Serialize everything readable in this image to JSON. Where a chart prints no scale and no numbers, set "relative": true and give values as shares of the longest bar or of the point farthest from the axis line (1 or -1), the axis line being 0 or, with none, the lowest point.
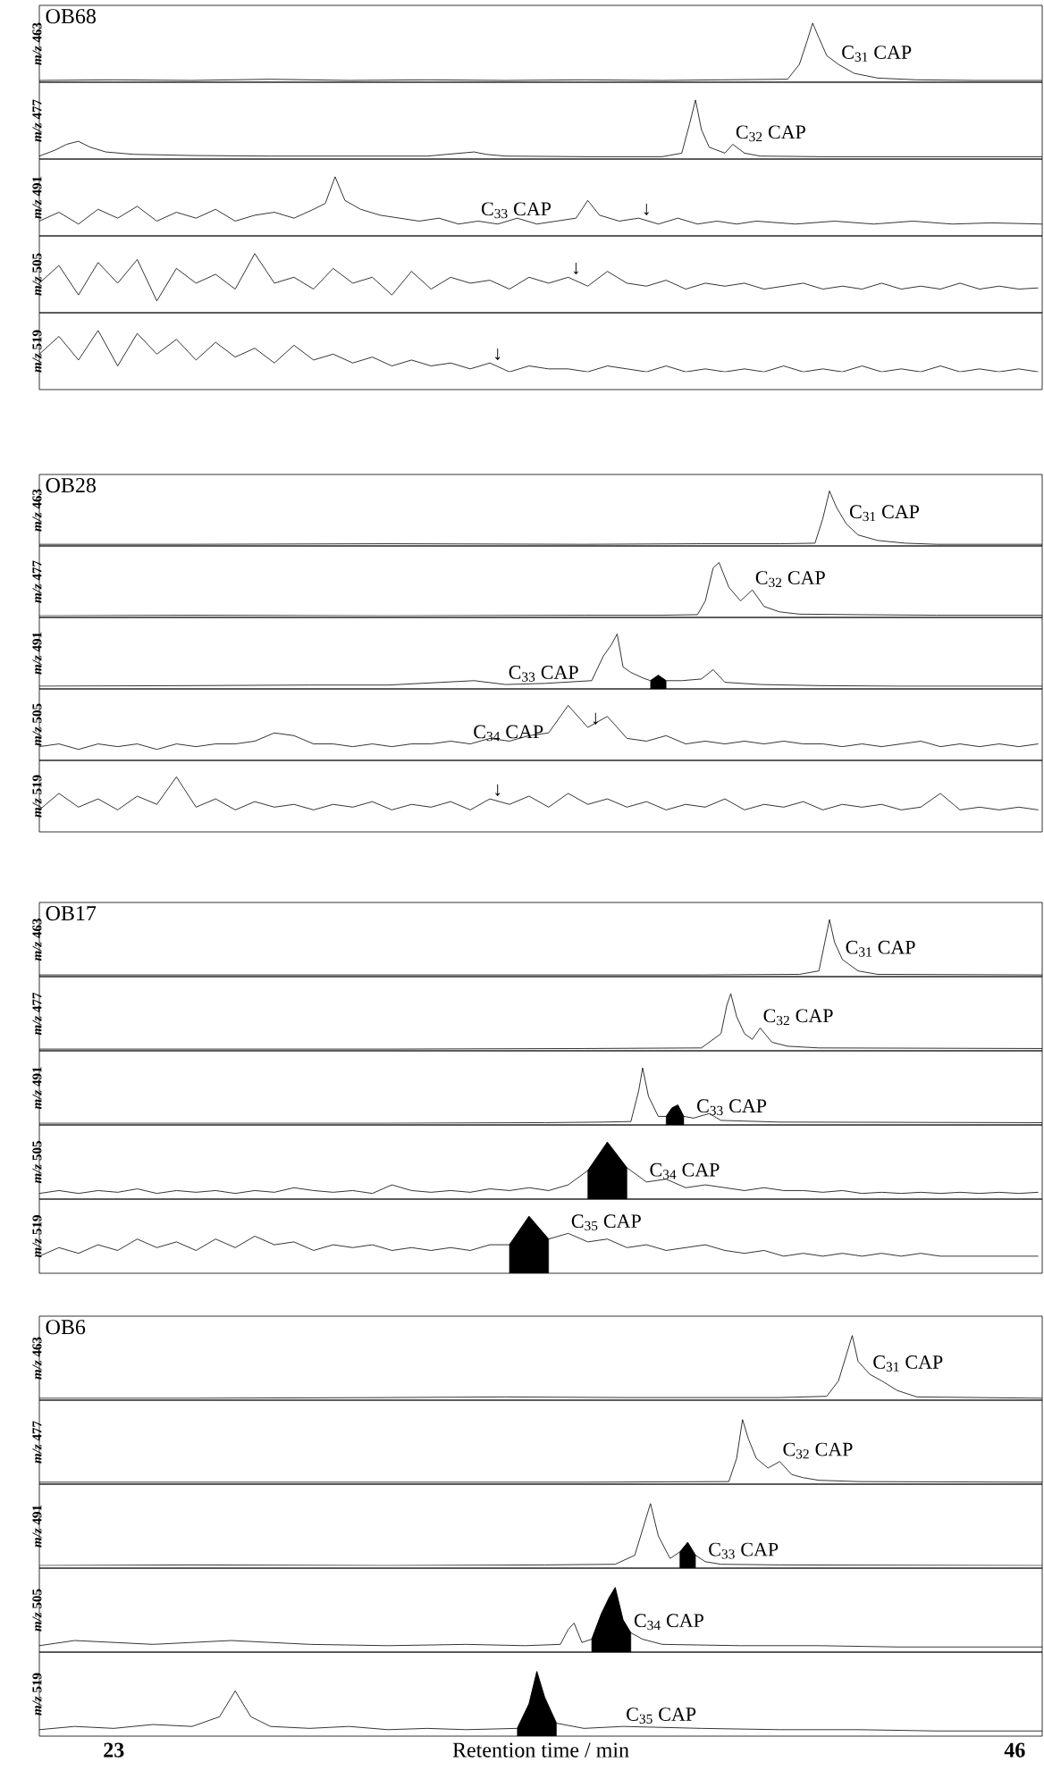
{
  "chart_data": [
    {
      "type": "line",
      "relative": true,
      "title": "OB68",
      "ylabel": "*m/z* 463",
      "xlim": [
        21.1,
        46.7
      ],
      "tick_labels": false,
      "series": [
        {
          "color": "#000000",
          "x": [
            21.1,
            23,
            25,
            27,
            29,
            31,
            33,
            35,
            37,
            38.5,
            40.2,
            40.5,
            40.7,
            40.84,
            41.0,
            41.2,
            41.5,
            41.9,
            42.5,
            43.5,
            45,
            46.7
          ],
          "values": [
            0.03,
            0.04,
            0.03,
            0.05,
            0.03,
            0.04,
            0.03,
            0.04,
            0.03,
            0.04,
            0.05,
            0.3,
            0.7,
            1,
            0.75,
            0.45,
            0.3,
            0.15,
            0.07,
            0.04,
            0.03,
            0.03
          ]
        }
      ],
      "annotations": [
        {
          "text": "C$_{31}$ CAP",
          "x": 41.5,
          "y": 0.3
        }
      ]
    },
    {
      "type": "line",
      "relative": true,
      "ylabel": "*m/z* 477",
      "xlim": [
        21.1,
        46.7
      ],
      "tick_labels": false,
      "series": [
        {
          "color": "#000000",
          "x": [
            21.1,
            21.5,
            21.8,
            22.1,
            22.4,
            22.8,
            23.5,
            25,
            27,
            29,
            31,
            32.2,
            32.5,
            33,
            35,
            37,
            37.5,
            37.7,
            37.85,
            38,
            38.2,
            38.6,
            38.8,
            39.1,
            39.5,
            41,
            43,
            45,
            46.7
          ],
          "values": [
            0.05,
            0.15,
            0.25,
            0.3,
            0.2,
            0.12,
            0.08,
            0.06,
            0.05,
            0.05,
            0.05,
            0.12,
            0.08,
            0.05,
            0.04,
            0.04,
            0.1,
            0.6,
            1,
            0.5,
            0.2,
            0.1,
            0.25,
            0.1,
            0.05,
            0.04,
            0.04,
            0.04,
            0.04
          ]
        }
      ],
      "annotations": [
        {
          "text": "C$_{32}$ CAP",
          "x": 38.8,
          "y": 0.25
        }
      ]
    },
    {
      "type": "line",
      "relative": true,
      "ylabel": "*m/z* 491",
      "xlim": [
        21.1,
        46.7
      ],
      "tick_labels": false,
      "series": [
        {
          "color": "#000000",
          "x": [
            21.1,
            21.6,
            22.1,
            22.6,
            23.1,
            23.6,
            24.1,
            24.6,
            25.1,
            25.6,
            26.1,
            26.6,
            27.1,
            27.6,
            28.1,
            28.4,
            28.65,
            28.9,
            29.3,
            29.8,
            30.3,
            30.8,
            31.3,
            31.8,
            32.3,
            32.8,
            33.3,
            33.8,
            34.3,
            34.8,
            35.1,
            35.4,
            35.9,
            36.4,
            36.9,
            37.4,
            37.9,
            38.4,
            38.9,
            39.4,
            40.4,
            41.4,
            42.4,
            43.4,
            44.4,
            45.4,
            46.7
          ],
          "values": [
            0.25,
            0.4,
            0.2,
            0.45,
            0.3,
            0.5,
            0.25,
            0.4,
            0.3,
            0.45,
            0.25,
            0.35,
            0.4,
            0.3,
            0.45,
            0.55,
            1,
            0.6,
            0.45,
            0.35,
            0.3,
            0.25,
            0.3,
            0.2,
            0.25,
            0.2,
            0.3,
            0.2,
            0.25,
            0.3,
            0.6,
            0.35,
            0.25,
            0.3,
            0.2,
            0.3,
            0.2,
            0.25,
            0.2,
            0.25,
            0.2,
            0.25,
            0.2,
            0.25,
            0.2,
            0.22,
            0.2
          ]
        }
      ],
      "annotations": [
        {
          "text": "C$_{33}$ CAP",
          "x": 32.3,
          "y": 0.25
        },
        {
          "text": "↓",
          "x": 36.4,
          "y": 0.3
        }
      ]
    },
    {
      "type": "line",
      "relative": true,
      "ylabel": "*m/z* 505",
      "xlim": [
        21.1,
        46.7
      ],
      "tick_labels": false,
      "series": [
        {
          "color": "#000000",
          "x": [
            21.1,
            21.6,
            22.1,
            22.6,
            23.1,
            23.6,
            24.1,
            24.6,
            25.1,
            25.6,
            26.1,
            26.6,
            27.1,
            27.6,
            28.1,
            28.6,
            29.1,
            29.6,
            30.1,
            30.6,
            31.1,
            31.6,
            32.1,
            32.6,
            33.1,
            33.6,
            34.1,
            34.6,
            35.1,
            35.6,
            36.1,
            36.6,
            37.1,
            37.6,
            38.1,
            38.6,
            39.1,
            39.6,
            40.1,
            40.6,
            41.1,
            41.6,
            42.1,
            42.6,
            43.1,
            43.6,
            44.1,
            44.6,
            45.1,
            45.6,
            46.1,
            46.6
          ],
          "values": [
            0.5,
            0.8,
            0.3,
            0.85,
            0.5,
            0.9,
            0.2,
            0.75,
            0.5,
            0.65,
            0.4,
            1,
            0.5,
            0.6,
            0.4,
            0.75,
            0.5,
            0.6,
            0.3,
            0.7,
            0.4,
            0.6,
            0.5,
            0.55,
            0.4,
            0.6,
            0.5,
            0.6,
            0.45,
            0.7,
            0.5,
            0.45,
            0.55,
            0.4,
            0.5,
            0.45,
            0.5,
            0.4,
            0.45,
            0.5,
            0.4,
            0.45,
            0.4,
            0.5,
            0.4,
            0.45,
            0.4,
            0.5,
            0.4,
            0.45,
            0.4,
            0.42
          ]
        }
      ],
      "annotations": [
        {
          "text": "↓",
          "x": 34.6,
          "y": 0.6
        }
      ]
    },
    {
      "type": "line",
      "relative": true,
      "ylabel": "*m/z* 519",
      "xlim": [
        21.1,
        46.7
      ],
      "tick_labels": false,
      "series": [
        {
          "color": "#000000",
          "x": [
            21.1,
            21.6,
            22.1,
            22.6,
            23.1,
            23.6,
            24.1,
            24.6,
            25.1,
            25.6,
            26.1,
            26.6,
            27.1,
            27.6,
            28.1,
            28.6,
            29.1,
            29.6,
            30.1,
            30.6,
            31.1,
            31.6,
            32.1,
            32.6,
            33.1,
            33.6,
            34.1,
            34.6,
            35.1,
            35.6,
            36.1,
            36.6,
            37.1,
            37.6,
            38.1,
            38.6,
            39.1,
            39.6,
            40.1,
            40.6,
            41.1,
            41.6,
            42.1,
            42.6,
            43.1,
            43.6,
            44.1,
            44.6,
            45.1,
            45.6,
            46.1,
            46.6
          ],
          "values": [
            0.6,
            0.9,
            0.5,
            1,
            0.4,
            0.95,
            0.6,
            0.85,
            0.5,
            0.8,
            0.55,
            0.7,
            0.45,
            0.75,
            0.5,
            0.6,
            0.45,
            0.55,
            0.4,
            0.5,
            0.4,
            0.45,
            0.35,
            0.45,
            0.3,
            0.4,
            0.35,
            0.35,
            0.3,
            0.4,
            0.35,
            0.3,
            0.4,
            0.3,
            0.35,
            0.3,
            0.35,
            0.3,
            0.4,
            0.3,
            0.35,
            0.3,
            0.4,
            0.3,
            0.35,
            0.3,
            0.4,
            0.3,
            0.35,
            0.3,
            0.35,
            0.3
          ]
        }
      ],
      "annotations": [
        {
          "text": "↓",
          "x": 32.6,
          "y": 0.45
        }
      ]
    },
    {
      "type": "line",
      "relative": true,
      "title": "OB28",
      "ylabel": "*m/z* 463",
      "xlim": [
        21.1,
        46.7
      ],
      "tick_labels": false,
      "series": [
        {
          "color": "#000000",
          "x": [
            21.1,
            25,
            30,
            35,
            38,
            40,
            40.9,
            41.1,
            41.27,
            41.45,
            41.7,
            42,
            42.5,
            43.2,
            44,
            46.7
          ],
          "values": [
            0.03,
            0.03,
            0.04,
            0.03,
            0.04,
            0.04,
            0.05,
            0.5,
            1,
            0.7,
            0.4,
            0.2,
            0.1,
            0.05,
            0.03,
            0.03
          ]
        }
      ],
      "annotations": [
        {
          "text": "C$_{31}$ CAP",
          "x": 41.7,
          "y": 0.4
        }
      ]
    },
    {
      "type": "line",
      "relative": true,
      "ylabel": "*m/z* 477",
      "xlim": [
        21.1,
        46.7
      ],
      "tick_labels": false,
      "series": [
        {
          "color": "#000000",
          "x": [
            21.1,
            25,
            30,
            35,
            37,
            37.9,
            38.1,
            38.3,
            38.45,
            38.7,
            39,
            39.3,
            39.6,
            40,
            40.5,
            42,
            44,
            46.7
          ],
          "values": [
            0.03,
            0.04,
            0.03,
            0.04,
            0.04,
            0.05,
            0.3,
            0.9,
            1,
            0.55,
            0.3,
            0.5,
            0.2,
            0.1,
            0.06,
            0.05,
            0.04,
            0.04
          ]
        }
      ],
      "annotations": [
        {
          "text": "C$_{32}$ CAP",
          "x": 39.3,
          "y": 0.5
        }
      ]
    },
    {
      "type": "line",
      "relative": true,
      "ylabel": "*m/z* 491",
      "xlim": [
        21.1,
        46.7
      ],
      "tick_labels": false,
      "series": [
        {
          "color": "#000000",
          "x": [
            21.1,
            25,
            28,
            30,
            32.2,
            33,
            34,
            35.2,
            35.5,
            35.7,
            35.85,
            36,
            36.2,
            36.5,
            36.7,
            36.9,
            37.1,
            37.5,
            38,
            38.3,
            38.6,
            39.5,
            41,
            43,
            46.7
          ],
          "values": [
            0.05,
            0.06,
            0.07,
            0.07,
            0.15,
            0.08,
            0.1,
            0.15,
            0.6,
            0.8,
            1,
            0.4,
            0.3,
            0.2,
            0.15,
            0.25,
            0.15,
            0.15,
            0.18,
            0.35,
            0.12,
            0.08,
            0.06,
            0.05,
            0.05
          ]
        },
        {
          "type": "area",
          "color": "#000000",
          "x": [
            36.7,
            36.9,
            37.1
          ],
          "values": [
            0.15,
            0.25,
            0.15
          ]
        }
      ],
      "annotations": [
        {
          "text": "C$_{33}$ CAP",
          "x": 33,
          "y": 0.08
        }
      ]
    },
    {
      "type": "line",
      "relative": true,
      "ylabel": "*m/z* 505",
      "xlim": [
        21.1,
        46.7
      ],
      "tick_labels": false,
      "series": [
        {
          "color": "#000000",
          "x": [
            21.1,
            21.6,
            22.1,
            22.6,
            23.1,
            23.6,
            24.1,
            24.6,
            25.1,
            25.6,
            26.1,
            26.6,
            27.1,
            27.6,
            28.1,
            28.6,
            29.1,
            29.6,
            30.1,
            30.6,
            31.1,
            31.6,
            32.1,
            32.6,
            33.1,
            33.6,
            34.1,
            34.6,
            35.1,
            35.6,
            36.1,
            36.6,
            37.1,
            37.6,
            38.1,
            38.6,
            39.1,
            39.6,
            40.1,
            40.6,
            41.1,
            41.6,
            42.1,
            42.6,
            43.1,
            43.6,
            44.1,
            44.6,
            45.1,
            45.6,
            46.1,
            46.6
          ],
          "values": [
            0.25,
            0.3,
            0.2,
            0.3,
            0.25,
            0.3,
            0.2,
            0.3,
            0.25,
            0.3,
            0.3,
            0.35,
            0.5,
            0.45,
            0.3,
            0.3,
            0.25,
            0.3,
            0.25,
            0.3,
            0.3,
            0.35,
            0.3,
            0.4,
            0.35,
            0.45,
            0.5,
            1,
            0.6,
            0.8,
            0.4,
            0.35,
            0.45,
            0.3,
            0.35,
            0.3,
            0.35,
            0.3,
            0.35,
            0.3,
            0.3,
            0.25,
            0.3,
            0.25,
            0.3,
            0.35,
            0.25,
            0.3,
            0.25,
            0.3,
            0.25,
            0.3
          ]
        }
      ],
      "annotations": [
        {
          "text": "C$_{34}$ CAP",
          "x": 32.1,
          "y": 0.3
        },
        {
          "text": "↓",
          "x": 35.1,
          "y": 0.6
        }
      ]
    },
    {
      "type": "line",
      "relative": true,
      "ylabel": "*m/z* 519",
      "xlim": [
        21.1,
        46.7
      ],
      "tick_labels": false,
      "series": [
        {
          "color": "#000000",
          "x": [
            21.1,
            21.6,
            22.1,
            22.6,
            23.1,
            23.6,
            24.1,
            24.6,
            25.1,
            25.6,
            26.1,
            26.6,
            27.1,
            27.6,
            28.1,
            28.6,
            29.1,
            29.6,
            30.1,
            30.6,
            31.1,
            31.6,
            32.1,
            32.6,
            33.1,
            33.6,
            34.1,
            34.6,
            35.1,
            35.6,
            36.1,
            36.6,
            37.1,
            37.6,
            38.1,
            38.6,
            39.1,
            39.6,
            40.1,
            40.6,
            41.1,
            41.6,
            42.1,
            42.6,
            43.1,
            43.6,
            44.1,
            44.6,
            45.1,
            45.6,
            46.1,
            46.6
          ],
          "values": [
            0.4,
            0.7,
            0.45,
            0.6,
            0.4,
            0.65,
            0.5,
            1,
            0.45,
            0.6,
            0.4,
            0.55,
            0.45,
            0.5,
            0.4,
            0.5,
            0.45,
            0.55,
            0.4,
            0.5,
            0.45,
            0.55,
            0.4,
            0.6,
            0.5,
            0.65,
            0.45,
            0.7,
            0.5,
            0.6,
            0.45,
            0.55,
            0.4,
            0.5,
            0.45,
            0.6,
            0.4,
            0.5,
            0.45,
            0.55,
            0.4,
            0.5,
            0.45,
            0.5,
            0.4,
            0.45,
            0.7,
            0.4,
            0.45,
            0.4,
            0.45,
            0.4
          ]
        }
      ],
      "annotations": [
        {
          "text": "↓",
          "x": 32.6,
          "y": 0.6
        }
      ]
    },
    {
      "type": "line",
      "relative": true,
      "title": "OB17",
      "ylabel": "*m/z* 463",
      "xlim": [
        21.1,
        46.7
      ],
      "tick_labels": false,
      "series": [
        {
          "color": "#000000",
          "x": [
            21.1,
            25,
            30,
            35,
            38,
            40.5,
            41.0,
            41.15,
            41.27,
            41.4,
            41.6,
            42,
            42.5,
            46.7
          ],
          "values": [
            0.03,
            0.03,
            0.03,
            0.03,
            0.03,
            0.04,
            0.1,
            0.6,
            1,
            0.6,
            0.3,
            0.1,
            0.04,
            0.03
          ]
        }
      ],
      "annotations": [
        {
          "text": "C$_{31}$ CAP",
          "x": 41.6,
          "y": 0.3
        }
      ]
    },
    {
      "type": "line",
      "relative": true,
      "ylabel": "*m/z* 477",
      "xlim": [
        21.1,
        46.7
      ],
      "tick_labels": false,
      "series": [
        {
          "color": "#000000",
          "x": [
            21.1,
            25,
            30,
            35,
            38,
            38.5,
            38.65,
            38.75,
            38.9,
            39.1,
            39.3,
            39.5,
            39.8,
            40.2,
            41,
            46.7
          ],
          "values": [
            0.03,
            0.03,
            0.03,
            0.04,
            0.05,
            0.3,
            0.8,
            1,
            0.6,
            0.3,
            0.2,
            0.4,
            0.15,
            0.08,
            0.05,
            0.04
          ]
        }
      ],
      "annotations": [
        {
          "text": "C$_{32}$ CAP",
          "x": 39.5,
          "y": 0.4
        }
      ]
    },
    {
      "type": "line",
      "relative": true,
      "ylabel": "*m/z* 491",
      "xlim": [
        21.1,
        46.7
      ],
      "tick_labels": false,
      "series": [
        {
          "color": "#000000",
          "x": [
            21.1,
            25,
            30,
            34,
            35.5,
            36.2,
            36.4,
            36.5,
            36.65,
            36.9,
            37.1,
            37.25,
            37.4,
            37.55,
            37.8,
            38.2,
            38.5,
            40,
            46.7
          ],
          "values": [
            0.03,
            0.03,
            0.03,
            0.04,
            0.05,
            0.06,
            0.6,
            1,
            0.5,
            0.15,
            0.15,
            0.3,
            0.35,
            0.15,
            0.12,
            0.2,
            0.08,
            0.05,
            0.04
          ]
        },
        {
          "type": "area",
          "color": "#000000",
          "x": [
            37.1,
            37.25,
            37.4,
            37.55
          ],
          "values": [
            0.15,
            0.3,
            0.35,
            0.15
          ]
        }
      ],
      "annotations": [
        {
          "text": "C$_{33}$ CAP",
          "x": 37.8,
          "y": 0.12
        }
      ]
    },
    {
      "type": "line",
      "relative": true,
      "ylabel": "*m/z* 505",
      "xlim": [
        21.1,
        46.7
      ],
      "tick_labels": false,
      "series": [
        {
          "color": "#000000",
          "x": [
            21.1,
            21.6,
            22.1,
            22.6,
            23.1,
            23.6,
            24.1,
            24.6,
            25.1,
            25.6,
            26.1,
            26.6,
            27.1,
            27.6,
            28.1,
            28.6,
            29.1,
            29.6,
            30.1,
            30.6,
            31.1,
            31.6,
            32.1,
            32.6,
            33.1,
            33.6,
            34.1,
            34.6,
            35.1,
            35.6,
            36.1,
            36.6,
            37.1,
            37.6,
            38.1,
            38.6,
            39.1,
            39.6,
            40.1,
            40.6,
            41.1,
            41.6,
            42.1,
            42.6,
            43.1,
            43.6,
            44.1,
            44.6,
            45.1,
            45.6,
            46.1,
            46.6
          ],
          "values": [
            0.1,
            0.15,
            0.1,
            0.15,
            0.12,
            0.18,
            0.1,
            0.15,
            0.12,
            0.15,
            0.1,
            0.15,
            0.12,
            0.2,
            0.15,
            0.12,
            0.15,
            0.1,
            0.25,
            0.15,
            0.12,
            0.15,
            0.12,
            0.18,
            0.15,
            0.2,
            0.15,
            0.25,
            0.5,
            1,
            0.55,
            0.3,
            0.35,
            0.2,
            0.25,
            0.2,
            0.15,
            0.2,
            0.15,
            0.15,
            0.12,
            0.15,
            0.1,
            0.12,
            0.1,
            0.12,
            0.1,
            0.12,
            0.1,
            0.12,
            0.1,
            0.12
          ]
        },
        {
          "type": "area",
          "color": "#000000",
          "x": [
            35.1,
            35.6,
            36.1
          ],
          "values": [
            0.5,
            1,
            0.55
          ]
        }
      ],
      "annotations": [
        {
          "text": "C$_{34}$ CAP",
          "x": 36.6,
          "y": 0.3
        }
      ]
    },
    {
      "type": "line",
      "relative": true,
      "ylabel": "*m/z* 519",
      "xlim": [
        21.1,
        46.7
      ],
      "tick_labels": false,
      "series": [
        {
          "color": "#000000",
          "x": [
            21.1,
            21.6,
            22.1,
            22.6,
            23.1,
            23.6,
            24.1,
            24.6,
            25.1,
            25.6,
            26.1,
            26.6,
            27.1,
            27.6,
            28.1,
            28.6,
            29.1,
            29.6,
            30.1,
            30.6,
            31.1,
            31.6,
            32.1,
            32.6,
            33.1,
            33.6,
            34.1,
            34.6,
            35.1,
            35.6,
            36.1,
            36.6,
            37.1,
            37.6,
            38.1,
            38.6,
            39.1,
            39.6,
            40.1,
            40.6,
            41.1,
            41.6,
            42.1,
            42.6,
            43.1,
            43.6,
            44.1,
            44.6,
            45.1,
            45.6,
            46.1,
            46.6
          ],
          "values": [
            0.3,
            0.45,
            0.35,
            0.5,
            0.4,
            0.6,
            0.45,
            0.55,
            0.4,
            0.6,
            0.45,
            0.65,
            0.5,
            0.55,
            0.4,
            0.5,
            0.45,
            0.5,
            0.4,
            0.45,
            0.4,
            0.45,
            0.4,
            0.5,
            0.5,
            1,
            0.6,
            0.7,
            0.55,
            0.6,
            0.45,
            0.5,
            0.4,
            0.45,
            0.5,
            0.4,
            0.35,
            0.4,
            0.3,
            0.35,
            0.3,
            0.35,
            0.3,
            0.35,
            0.3,
            0.35,
            0.3,
            0.3,
            0.3,
            0.3,
            0.3,
            0.3
          ]
        },
        {
          "type": "area",
          "color": "#000000",
          "x": [
            33.1,
            33.6,
            34.1
          ],
          "values": [
            0.5,
            1,
            0.6
          ]
        }
      ],
      "annotations": [
        {
          "text": "C$_{35}$ CAP",
          "x": 34.6,
          "y": 0.7
        }
      ]
    },
    {
      "type": "line",
      "relative": true,
      "title": "OB6",
      "ylabel": "*m/z* 463",
      "xlim": [
        21.1,
        46.7
      ],
      "tick_labels": false,
      "series": [
        {
          "color": "#000000",
          "x": [
            21.1,
            25,
            30,
            33,
            36,
            40,
            41.2,
            41.5,
            41.7,
            41.85,
            42,
            42.3,
            42.6,
            43,
            43.5,
            46.7
          ],
          "values": [
            0.03,
            0.03,
            0.04,
            0.05,
            0.04,
            0.04,
            0.06,
            0.3,
            0.7,
            1,
            0.6,
            0.4,
            0.3,
            0.15,
            0.05,
            0.03
          ]
        }
      ],
      "annotations": [
        {
          "text": "C$_{31}$ CAP",
          "x": 42.3,
          "y": 0.4
        }
      ]
    },
    {
      "type": "line",
      "relative": true,
      "ylabel": "*m/z* 477",
      "xlim": [
        21.1,
        46.7
      ],
      "tick_labels": false,
      "series": [
        {
          "color": "#000000",
          "x": [
            21.1,
            25,
            30,
            35,
            38.7,
            38.9,
            39.05,
            39.2,
            39.4,
            39.7,
            40,
            40.3,
            40.6,
            41,
            42,
            46.7
          ],
          "values": [
            0.03,
            0.03,
            0.03,
            0.03,
            0.04,
            0.4,
            1,
            0.7,
            0.4,
            0.25,
            0.35,
            0.15,
            0.1,
            0.06,
            0.04,
            0.03
          ]
        }
      ],
      "annotations": [
        {
          "text": "C$_{32}$ CAP",
          "x": 40,
          "y": 0.35
        }
      ]
    },
    {
      "type": "line",
      "relative": true,
      "ylabel": "*m/z* 491",
      "xlim": [
        21.1,
        46.7
      ],
      "tick_labels": false,
      "series": [
        {
          "color": "#000000",
          "x": [
            21.1,
            25,
            30,
            34,
            35.8,
            36.3,
            36.55,
            36.7,
            36.9,
            37.2,
            37.45,
            37.65,
            37.85,
            38.1,
            38.5,
            40,
            46.7
          ],
          "values": [
            0.04,
            0.05,
            0.04,
            0.05,
            0.06,
            0.2,
            0.7,
            1,
            0.5,
            0.15,
            0.25,
            0.4,
            0.2,
            0.1,
            0.06,
            0.05,
            0.04
          ]
        },
        {
          "type": "area",
          "color": "#000000",
          "x": [
            37.45,
            37.65,
            37.85
          ],
          "values": [
            0.25,
            0.4,
            0.2
          ]
        }
      ],
      "annotations": [
        {
          "text": "C$_{33}$ CAP",
          "x": 38.1,
          "y": 0.1
        }
      ]
    },
    {
      "type": "line",
      "relative": true,
      "ylabel": "*m/z* 505",
      "xlim": [
        21.1,
        46.7
      ],
      "tick_labels": false,
      "series": [
        {
          "color": "#000000",
          "x": [
            21.1,
            22,
            24,
            26,
            28,
            30,
            32,
            33.5,
            34.4,
            34.6,
            34.75,
            34.95,
            35.2,
            35.45,
            35.65,
            35.8,
            36,
            36.2,
            36.5,
            37,
            39,
            41,
            43,
            46.7
          ],
          "values": [
            0.1,
            0.18,
            0.12,
            0.18,
            0.12,
            0.1,
            0.12,
            0.1,
            0.12,
            0.35,
            0.45,
            0.15,
            0.2,
            0.6,
            0.85,
            1,
            0.5,
            0.3,
            0.2,
            0.12,
            0.1,
            0.1,
            0.08,
            0.08
          ]
        },
        {
          "type": "area",
          "color": "#000000",
          "x": [
            35.2,
            35.45,
            35.65,
            35.8,
            36,
            36.2
          ],
          "values": [
            0.2,
            0.6,
            0.85,
            1,
            0.5,
            0.3
          ]
        }
      ],
      "annotations": [
        {
          "text": "C$_{34}$ CAP",
          "x": 36.2,
          "y": 0.3
        }
      ]
    },
    {
      "type": "line",
      "relative": true,
      "ylabel": "*m/z* 519",
      "xlim": [
        21.1,
        46.7
      ],
      "tick_labels": "x",
      "xticks": [
        23,
        46
      ],
      "xlabel": "Retention time / min",
      "series": [
        {
          "color": "#000000",
          "x": [
            21.1,
            22,
            23,
            24,
            25,
            25.7,
            26.1,
            26.5,
            27,
            28,
            29,
            30,
            31,
            32,
            33.3,
            33.6,
            33.8,
            34,
            34.3,
            35,
            36,
            38,
            40,
            42,
            44,
            46.7
          ],
          "values": [
            0.1,
            0.15,
            0.12,
            0.18,
            0.15,
            0.3,
            0.7,
            0.3,
            0.15,
            0.12,
            0.15,
            0.1,
            0.12,
            0.1,
            0.12,
            0.5,
            1,
            0.6,
            0.2,
            0.12,
            0.15,
            0.12,
            0.1,
            0.1,
            0.08,
            0.08
          ]
        },
        {
          "type": "area",
          "color": "#000000",
          "x": [
            33.3,
            33.6,
            33.8,
            34,
            34.3
          ],
          "values": [
            0.12,
            0.5,
            1,
            0.6,
            0.2
          ]
        }
      ],
      "annotations": [
        {
          "text": "C$_{35}$ CAP",
          "x": 36,
          "y": 0.15
        }
      ]
    }
  ]
}
